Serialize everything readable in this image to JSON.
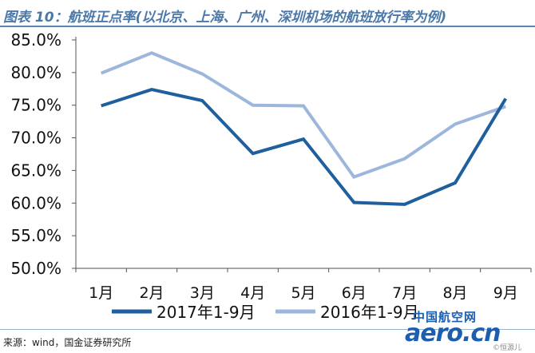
{
  "header": {
    "title": "图表 10：航班正点率(以北京、上海、广州、深圳机场的航班放行率为例)"
  },
  "footer": {
    "source": "来源：wind，国金证券研究所"
  },
  "logo": {
    "cn_text": "中国航空网",
    "main_text": "aero.cn",
    "sub_text": "©恒源儿"
  },
  "colors": {
    "series_2017": "#1f5f9e",
    "series_2016": "#9db7dc",
    "axis": "#555555",
    "accent": "#4a78a8"
  },
  "chart_data": {
    "type": "line",
    "title": "",
    "xlabel": "",
    "ylabel": "",
    "categories": [
      "1月",
      "2月",
      "3月",
      "4月",
      "5月",
      "6月",
      "7月",
      "8月",
      "9月"
    ],
    "ylim": [
      0.5,
      0.85
    ],
    "yticks": [
      0.5,
      0.55,
      0.6,
      0.65,
      0.7,
      0.75,
      0.8,
      0.85
    ],
    "ytick_labels": [
      "50.0%",
      "55.0%",
      "60.0%",
      "65.0%",
      "70.0%",
      "75.0%",
      "80.0%",
      "85.0%"
    ],
    "grid": false,
    "legend_position": "bottom",
    "series": [
      {
        "name": "2017年1-9月",
        "color": "#1f5f9e",
        "values": [
          0.749,
          0.774,
          0.757,
          0.676,
          0.698,
          0.601,
          0.598,
          0.631,
          0.76
        ]
      },
      {
        "name": "2016年1-9月",
        "color": "#9db7dc",
        "values": [
          0.799,
          0.83,
          0.798,
          0.75,
          0.749,
          0.64,
          0.668,
          0.721,
          0.748
        ]
      }
    ]
  }
}
